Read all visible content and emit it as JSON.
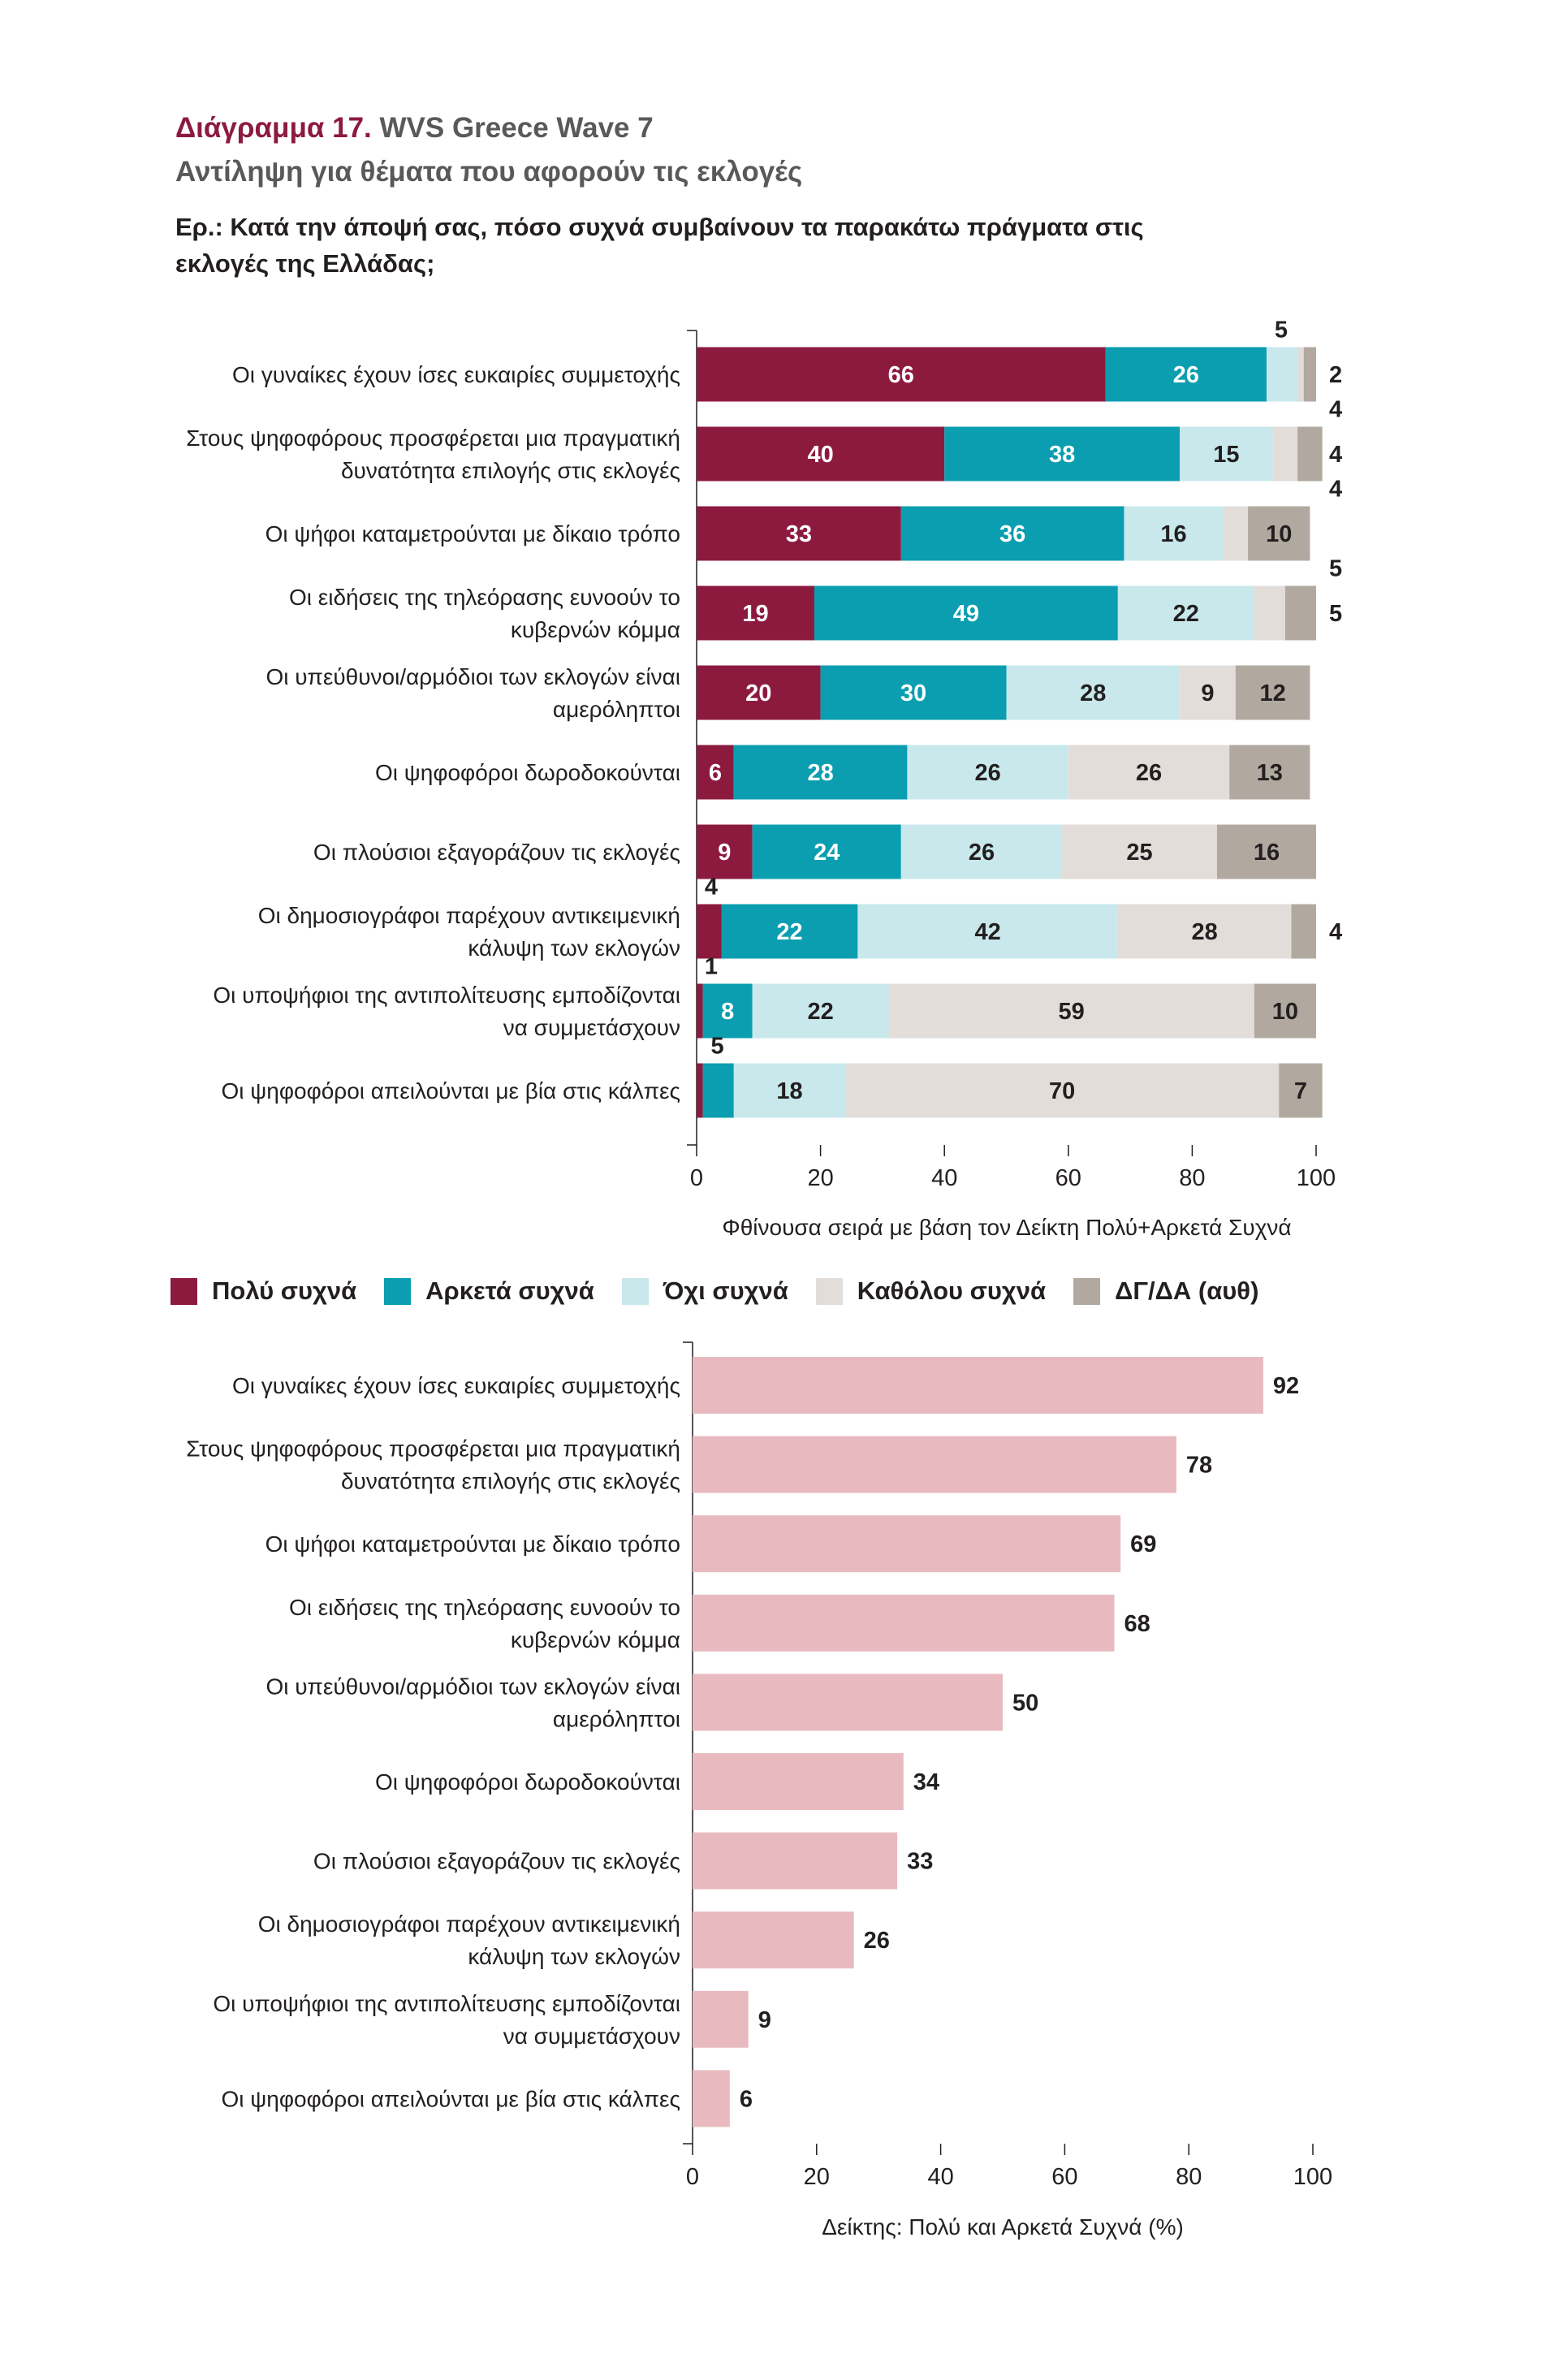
{
  "header": {
    "figure_label": "Διάγραμμα 17.",
    "figure_rest": "WVS Greece Wave 7",
    "subtitle": "Αντίληψη για θέματα που αφορούν τις εκλογές",
    "question": "Ερ.: Κατά την άποψή σας, πόσο συχνά συμβαίνουν τα παρακάτω πράγματα στις εκλογές της Ελλάδας;"
  },
  "colors": {
    "very_often": "#8c1a3f",
    "fairly_often": "#0a9eb0",
    "not_often": "#c8e8ec",
    "not_at_all": "#e2ddd9",
    "dk_na": "#b1a99f",
    "index_bar": "#e8babf"
  },
  "chart_data": [
    {
      "type": "bar",
      "orientation": "horizontal",
      "stacked": true,
      "categories": [
        "Οι γυναίκες έχουν ίσες ευκαιρίες συμμετοχής",
        "Στους ψηφοφόρους προσφέρεται μια πραγματική δυνατότητα επιλογής στις εκλογές",
        "Οι ψήφοι καταμετρούνται με δίκαιο τρόπο",
        "Οι ειδήσεις της τηλεόρασης ευνοούν το κυβερνών κόμμα",
        "Οι υπεύθυνοι/αρμόδιοι των εκλογών είναι αμερόληπτοι",
        "Οι ψηφοφόροι δωροδοκούνται",
        "Οι πλούσιοι εξαγοράζουν τις εκλογές",
        "Οι δημοσιογράφοι παρέχουν αντικειμενική κάλυψη των εκλογών",
        "Οι υποψήφιοι της αντιπολίτευσης εμποδίζονται να συμμετάσχουν",
        "Οι ψηφοφόροι απειλούνται με βία στις κάλπες"
      ],
      "series": [
        {
          "name": "Πολύ συχνά",
          "values": [
            66,
            40,
            33,
            19,
            20,
            6,
            9,
            4,
            1,
            1
          ]
        },
        {
          "name": "Αρκετά συχνά",
          "values": [
            26,
            38,
            36,
            49,
            30,
            28,
            24,
            22,
            8,
            5
          ]
        },
        {
          "name": "Όχι συχνά",
          "values": [
            5,
            15,
            16,
            22,
            28,
            26,
            26,
            42,
            22,
            18
          ]
        },
        {
          "name": "Καθόλου συχνά",
          "values": [
            1,
            4,
            4,
            5,
            9,
            26,
            25,
            28,
            59,
            70
          ]
        },
        {
          "name": "ΔΓ/ΔΑ (αυθ)",
          "values": [
            2,
            4,
            10,
            5,
            12,
            13,
            16,
            4,
            10,
            7
          ]
        }
      ],
      "xlim": [
        0,
        100
      ],
      "xticks": [
        "0",
        "20",
        "40",
        "60",
        "80",
        "100"
      ],
      "xlabel": "Φθίνουσα σειρά με βάση τον Δείκτη Πολύ+Αρκετά Συχνά",
      "segment_labels": [
        [
          "66",
          "26",
          "5",
          "",
          "2"
        ],
        [
          "40",
          "38",
          "15",
          "4",
          "4"
        ],
        [
          "33",
          "36",
          "16",
          "4",
          "10"
        ],
        [
          "19",
          "49",
          "22",
          "5",
          "5"
        ],
        [
          "20",
          "30",
          "28",
          "9",
          "12"
        ],
        [
          "6",
          "28",
          "26",
          "26",
          "13"
        ],
        [
          "9",
          "24",
          "26",
          "25",
          "16"
        ],
        [
          "4",
          "22",
          "42",
          "28",
          "4"
        ],
        [
          "1",
          "8",
          "22",
          "59",
          "10"
        ],
        [
          "",
          "5",
          "18",
          "70",
          "7"
        ]
      ],
      "legend": "bottom"
    },
    {
      "type": "bar",
      "orientation": "horizontal",
      "categories": [
        "Οι γυναίκες έχουν ίσες ευκαιρίες συμμετοχής",
        "Στους ψηφοφόρους προσφέρεται μια πραγματική δυνατότητα επιλογής στις εκλογές",
        "Οι ψήφοι καταμετρούνται με δίκαιο τρόπο",
        "Οι ειδήσεις της τηλεόρασης ευνοούν το κυβερνών κόμμα",
        "Οι υπεύθυνοι/αρμόδιοι των εκλογών είναι αμερόληπτοι",
        "Οι ψηφοφόροι δωροδοκούνται",
        "Οι πλούσιοι εξαγοράζουν τις εκλογές",
        "Οι δημοσιογράφοι παρέχουν αντικειμενική κάλυψη των εκλογών",
        "Οι υποψήφιοι της αντιπολίτευσης εμποδίζονται να συμμετάσχουν",
        "Οι ψηφοφόροι απειλούνται με βία στις κάλπες"
      ],
      "values": [
        92,
        78,
        69,
        68,
        50,
        34,
        33,
        26,
        9,
        6
      ],
      "xlim": [
        0,
        100
      ],
      "xticks": [
        "0",
        "20",
        "40",
        "60",
        "80",
        "100"
      ],
      "xlabel": "Δείκτης: Πολύ και Αρκετά Συχνά  (%)"
    }
  ]
}
